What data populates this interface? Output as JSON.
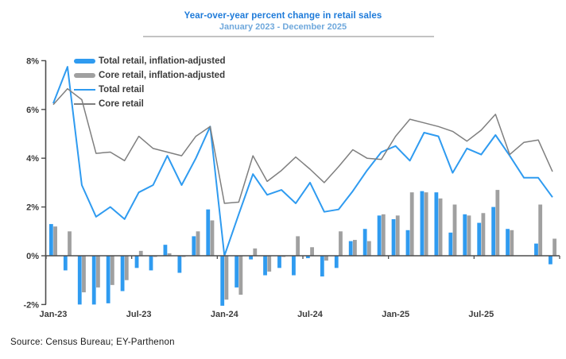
{
  "title": "Year-over-year percent change in retail sales",
  "subtitle": "January 2023 - December 2025",
  "source": "Source: Census Bureau; EY-Parthenon",
  "colors": {
    "title_blue": "#1d7ad9",
    "subtitle_blue": "#6fa8dc",
    "total_blue": "#2f9bf0",
    "core_bar_gray": "#a0a0a0",
    "core_line_gray": "#7f7f7f",
    "axis_gray": "#4d4d4d",
    "underline_gray": "#c3c3c3"
  },
  "chart_data": {
    "type": "bar",
    "subtype": "clustered-columns-with-lines-combo",
    "title": "Year-over-year percent change in retail sales",
    "subtitle": "January 2023 - December 2025",
    "ylim": [
      -2,
      8
    ],
    "grid": false,
    "legend_position": "top-left-inside",
    "categories": [
      "Jan-23",
      "Feb-23",
      "Mar-23",
      "Apr-23",
      "May-23",
      "Jun-23",
      "Jul-23",
      "Aug-23",
      "Sep-23",
      "Oct-23",
      "Nov-23",
      "Dec-23",
      "Jan-24",
      "Feb-24",
      "Mar-24",
      "Apr-24",
      "May-24",
      "Jun-24",
      "Jul-24",
      "Aug-24",
      "Sep-24",
      "Oct-24",
      "Nov-24",
      "Dec-24",
      "Jan-25",
      "Feb-25",
      "Mar-25",
      "Apr-25",
      "May-25",
      "Jun-25",
      "Jul-25",
      "Aug-25",
      "Sep-25",
      "Oct-25",
      "Nov-25",
      "Dec-25"
    ],
    "y_axis": {
      "tick_values": [
        8,
        6,
        4,
        2,
        0,
        -2
      ],
      "tick_labels": [
        "8%",
        "6%",
        "4%",
        "2%",
        "0%",
        "-2%"
      ]
    },
    "x_axis": {
      "labeled_indices": [
        0,
        6,
        12,
        18,
        24,
        30
      ],
      "labels": [
        "Jan-23",
        "Jul-23",
        "Jan-24",
        "Jul-24",
        "Jan-25",
        "Jul-25"
      ]
    },
    "series": [
      {
        "name": "Total retail, inflation-adjusted",
        "kind": "bar",
        "color_key": "total_blue",
        "values": [
          1.3,
          -0.6,
          -2.0,
          -2.0,
          -1.95,
          -1.45,
          -0.5,
          -0.6,
          0.45,
          -0.7,
          0.8,
          1.9,
          -2.05,
          -1.3,
          -0.15,
          -0.8,
          -0.5,
          -0.8,
          -0.1,
          -0.85,
          -0.5,
          0.6,
          1.1,
          1.65,
          1.5,
          1.05,
          2.65,
          2.6,
          0.95,
          1.7,
          1.35,
          2.0,
          1.1,
          0.0,
          0.5,
          -0.35
        ]
      },
      {
        "name": "Core retail, inflation-adjusted",
        "kind": "bar",
        "color_key": "core_bar_gray",
        "values": [
          1.2,
          1.0,
          -1.5,
          -1.3,
          -1.2,
          -1.0,
          0.2,
          -0.05,
          0.1,
          -0.05,
          1.0,
          1.45,
          -1.8,
          -1.6,
          0.3,
          -0.65,
          -0.05,
          0.8,
          0.35,
          -0.2,
          1.0,
          0.65,
          0.6,
          1.7,
          1.65,
          2.6,
          2.6,
          2.35,
          2.1,
          1.65,
          1.75,
          2.7,
          1.05,
          0.0,
          2.1,
          0.7
        ]
      },
      {
        "name": "Total retail",
        "kind": "line",
        "color_key": "total_blue",
        "values": [
          6.25,
          7.75,
          2.9,
          1.6,
          2.0,
          1.5,
          2.6,
          2.9,
          4.1,
          2.9,
          4.0,
          5.3,
          0.0,
          1.7,
          3.35,
          2.5,
          2.7,
          2.15,
          3.0,
          1.8,
          1.9,
          2.65,
          3.5,
          4.25,
          4.5,
          3.9,
          5.05,
          4.9,
          3.4,
          4.4,
          4.15,
          4.95,
          4.1,
          3.2,
          3.2,
          2.4
        ]
      },
      {
        "name": "Core retail",
        "kind": "line",
        "color_key": "core_line_gray",
        "values": [
          6.2,
          6.85,
          6.4,
          4.2,
          4.25,
          3.9,
          4.9,
          4.4,
          4.25,
          4.1,
          4.9,
          5.3,
          2.15,
          2.2,
          4.1,
          3.05,
          3.5,
          4.05,
          3.55,
          3.0,
          3.65,
          4.35,
          4.0,
          3.95,
          4.9,
          5.6,
          5.45,
          5.3,
          5.1,
          4.7,
          5.15,
          5.8,
          4.15,
          4.65,
          4.75,
          3.45
        ]
      }
    ],
    "legend": [
      {
        "label": "Total retail, inflation-adjusted",
        "swatch": "thick",
        "color_key": "total_blue"
      },
      {
        "label": "Core retail, inflation-adjusted",
        "swatch": "thick",
        "color_key": "core_bar_gray"
      },
      {
        "label": "Total retail",
        "swatch": "thin",
        "color_key": "total_blue"
      },
      {
        "label": "Core retail",
        "swatch": "thin",
        "color_key": "core_line_gray"
      }
    ]
  }
}
